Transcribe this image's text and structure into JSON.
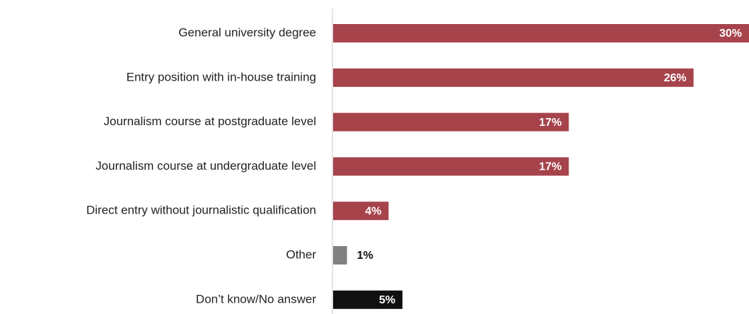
{
  "chart_data": {
    "type": "barh",
    "categories": [
      "General university degree",
      "Entry position with in-house training",
      "Journalism course at postgraduate level",
      "Journalism course at undergraduate level",
      "Direct entry without journalistic qualification",
      "Other",
      "Don’t know/No answer"
    ],
    "values": [
      30,
      26,
      17,
      17,
      4,
      1,
      5
    ],
    "value_labels": [
      "30%",
      "26%",
      "17%",
      "17%",
      "4%",
      "1%",
      "5%"
    ],
    "colors": [
      "#a6434b",
      "#a6434b",
      "#a6434b",
      "#a6434b",
      "#a6434b",
      "#808080",
      "#111111"
    ]
  }
}
